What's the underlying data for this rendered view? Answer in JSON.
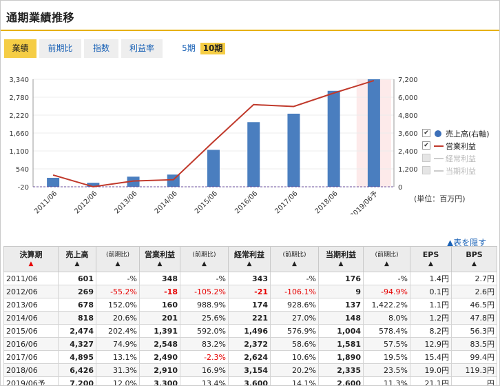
{
  "header": {
    "title": "通期業績推移"
  },
  "tabs": [
    {
      "label": "業績",
      "active": true
    },
    {
      "label": "前期比",
      "active": false
    },
    {
      "label": "指数",
      "active": false
    },
    {
      "label": "利益率",
      "active": false
    }
  ],
  "periods": [
    {
      "label": "5期",
      "active": false
    },
    {
      "label": "10期",
      "active": true
    }
  ],
  "chart_data": {
    "type": "bar",
    "categories": [
      "2011/06",
      "2012/06",
      "2013/06",
      "2014/06",
      "2015/06",
      "2016/06",
      "2017/06",
      "2018/06",
      "2019/06予"
    ],
    "left_axis": {
      "ticks": [
        "3,340",
        "2,780",
        "2,220",
        "1,660",
        "1,100",
        "540",
        "-20"
      ],
      "ylim": [
        -20,
        3340
      ]
    },
    "right_axis": {
      "ticks": [
        "7,200",
        "6,000",
        "4,800",
        "3,600",
        "2,400",
        "1,200",
        "0"
      ],
      "ylim": [
        0,
        7200
      ]
    },
    "series": [
      {
        "name": "売上高(右軸)",
        "type": "bar",
        "axis": "right",
        "color": "#4a7ebf",
        "values": [
          601,
          269,
          678,
          818,
          2474,
          4327,
          4895,
          6426,
          7200
        ]
      },
      {
        "name": "営業利益",
        "type": "line",
        "axis": "left",
        "color": "#c0392b",
        "values": [
          348,
          -18,
          160,
          201,
          1391,
          2548,
          2490,
          2910,
          3300
        ]
      },
      {
        "name": "経常利益",
        "type": "line",
        "axis": "left",
        "color": "#c8c8c8",
        "hidden": true,
        "values": [
          343,
          -21,
          174,
          221,
          1496,
          2372,
          2624,
          3154,
          3600
        ]
      },
      {
        "name": "当期利益",
        "type": "line",
        "axis": "left",
        "color": "#c8c8c8",
        "hidden": true,
        "values": [
          176,
          9,
          137,
          148,
          1004,
          1581,
          1890,
          2335,
          2600
        ]
      }
    ],
    "forecast_index": 8,
    "legend_position": "right",
    "unit": "(単位：百万円)"
  },
  "table_link": "▲表を隠す",
  "table": {
    "headers": [
      {
        "label": "決算期",
        "arrow": "▲",
        "red": true
      },
      {
        "label": "売上高",
        "arrow": "▲"
      },
      {
        "label": "(前期比)",
        "arrow": "▲",
        "sub": true
      },
      {
        "label": "営業利益",
        "arrow": "▲"
      },
      {
        "label": "(前期比)",
        "arrow": "▲",
        "sub": true
      },
      {
        "label": "経常利益",
        "arrow": "▲"
      },
      {
        "label": "(前期比)",
        "arrow": "▲",
        "sub": true
      },
      {
        "label": "当期利益",
        "arrow": "▲"
      },
      {
        "label": "(前期比)",
        "arrow": "▲",
        "sub": true
      },
      {
        "label": "EPS",
        "arrow": "▲"
      },
      {
        "label": "BPS",
        "arrow": "▲"
      }
    ],
    "rows": [
      [
        "2011/06",
        "601",
        "-%",
        "348",
        "-%",
        "343",
        "-%",
        "176",
        "-%",
        "1.4円",
        "2.7円"
      ],
      [
        "2012/06",
        "269",
        "-55.2%",
        "-18",
        "-105.2%",
        "-21",
        "-106.1%",
        "9",
        "-94.9%",
        "0.1円",
        "2.6円"
      ],
      [
        "2013/06",
        "678",
        "152.0%",
        "160",
        "988.9%",
        "174",
        "928.6%",
        "137",
        "1,422.2%",
        "1.1円",
        "46.5円"
      ],
      [
        "2014/06",
        "818",
        "20.6%",
        "201",
        "25.6%",
        "221",
        "27.0%",
        "148",
        "8.0%",
        "1.2円",
        "47.8円"
      ],
      [
        "2015/06",
        "2,474",
        "202.4%",
        "1,391",
        "592.0%",
        "1,496",
        "576.9%",
        "1,004",
        "578.4%",
        "8.2円",
        "56.3円"
      ],
      [
        "2016/06",
        "4,327",
        "74.9%",
        "2,548",
        "83.2%",
        "2,372",
        "58.6%",
        "1,581",
        "57.5%",
        "12.9円",
        "83.5円"
      ],
      [
        "2017/06",
        "4,895",
        "13.1%",
        "2,490",
        "-2.3%",
        "2,624",
        "10.6%",
        "1,890",
        "19.5%",
        "15.4円",
        "99.4円"
      ],
      [
        "2018/06",
        "6,426",
        "31.3%",
        "2,910",
        "16.9%",
        "3,154",
        "20.2%",
        "2,335",
        "23.5%",
        "19.0円",
        "119.3円"
      ],
      [
        "2019/06予",
        "7,200",
        "12.0%",
        "3,300",
        "13.4%",
        "3,600",
        "14.1%",
        "2,600",
        "11.3%",
        "21.1円",
        "円"
      ]
    ]
  }
}
